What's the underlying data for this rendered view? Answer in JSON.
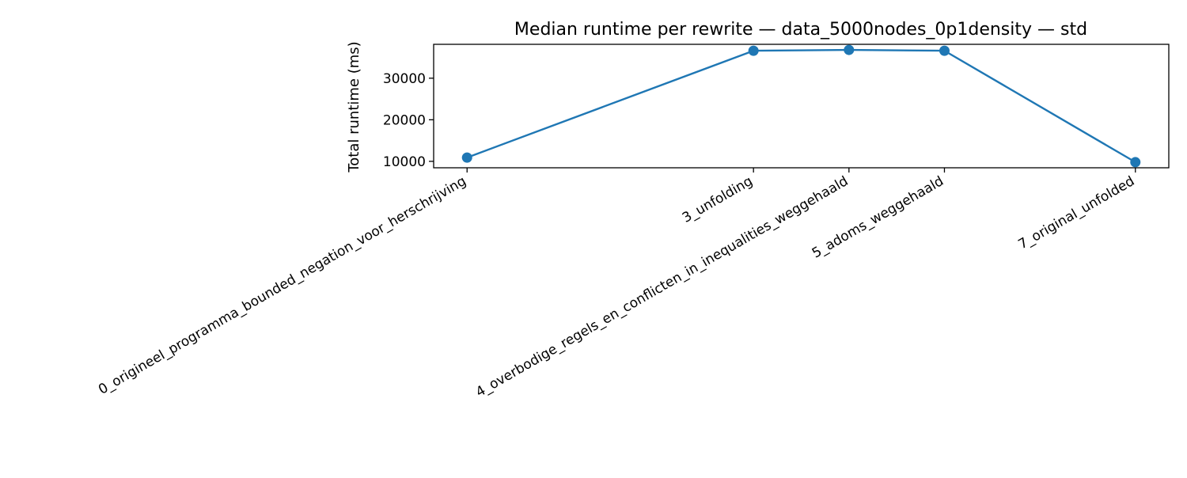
{
  "chart_data": {
    "type": "line",
    "title": "Median runtime per rewrite — data_5000nodes_0p1density — std",
    "xlabel": "",
    "ylabel": "Total runtime (ms)",
    "categories": [
      "0_origineel_programma_bounded_negation_voor_herschrijving",
      "3_unfolding",
      "4_overbodige_regels_en_conflicten_in_inequalities_weggehaald",
      "5_adoms_weggehaald",
      "7_original_unfolded"
    ],
    "x": [
      0,
      3,
      4,
      5,
      7
    ],
    "series": [
      {
        "values": [
          10900,
          36600,
          36800,
          36600,
          9800
        ],
        "color": "#1f77b4"
      }
    ],
    "yticks": [
      10000,
      20000,
      30000
    ],
    "ylim": [
      8450,
      38150
    ],
    "xlim": [
      -0.35,
      7.35
    ],
    "grid": false,
    "legend": "none",
    "xtick_rotation": 30
  }
}
